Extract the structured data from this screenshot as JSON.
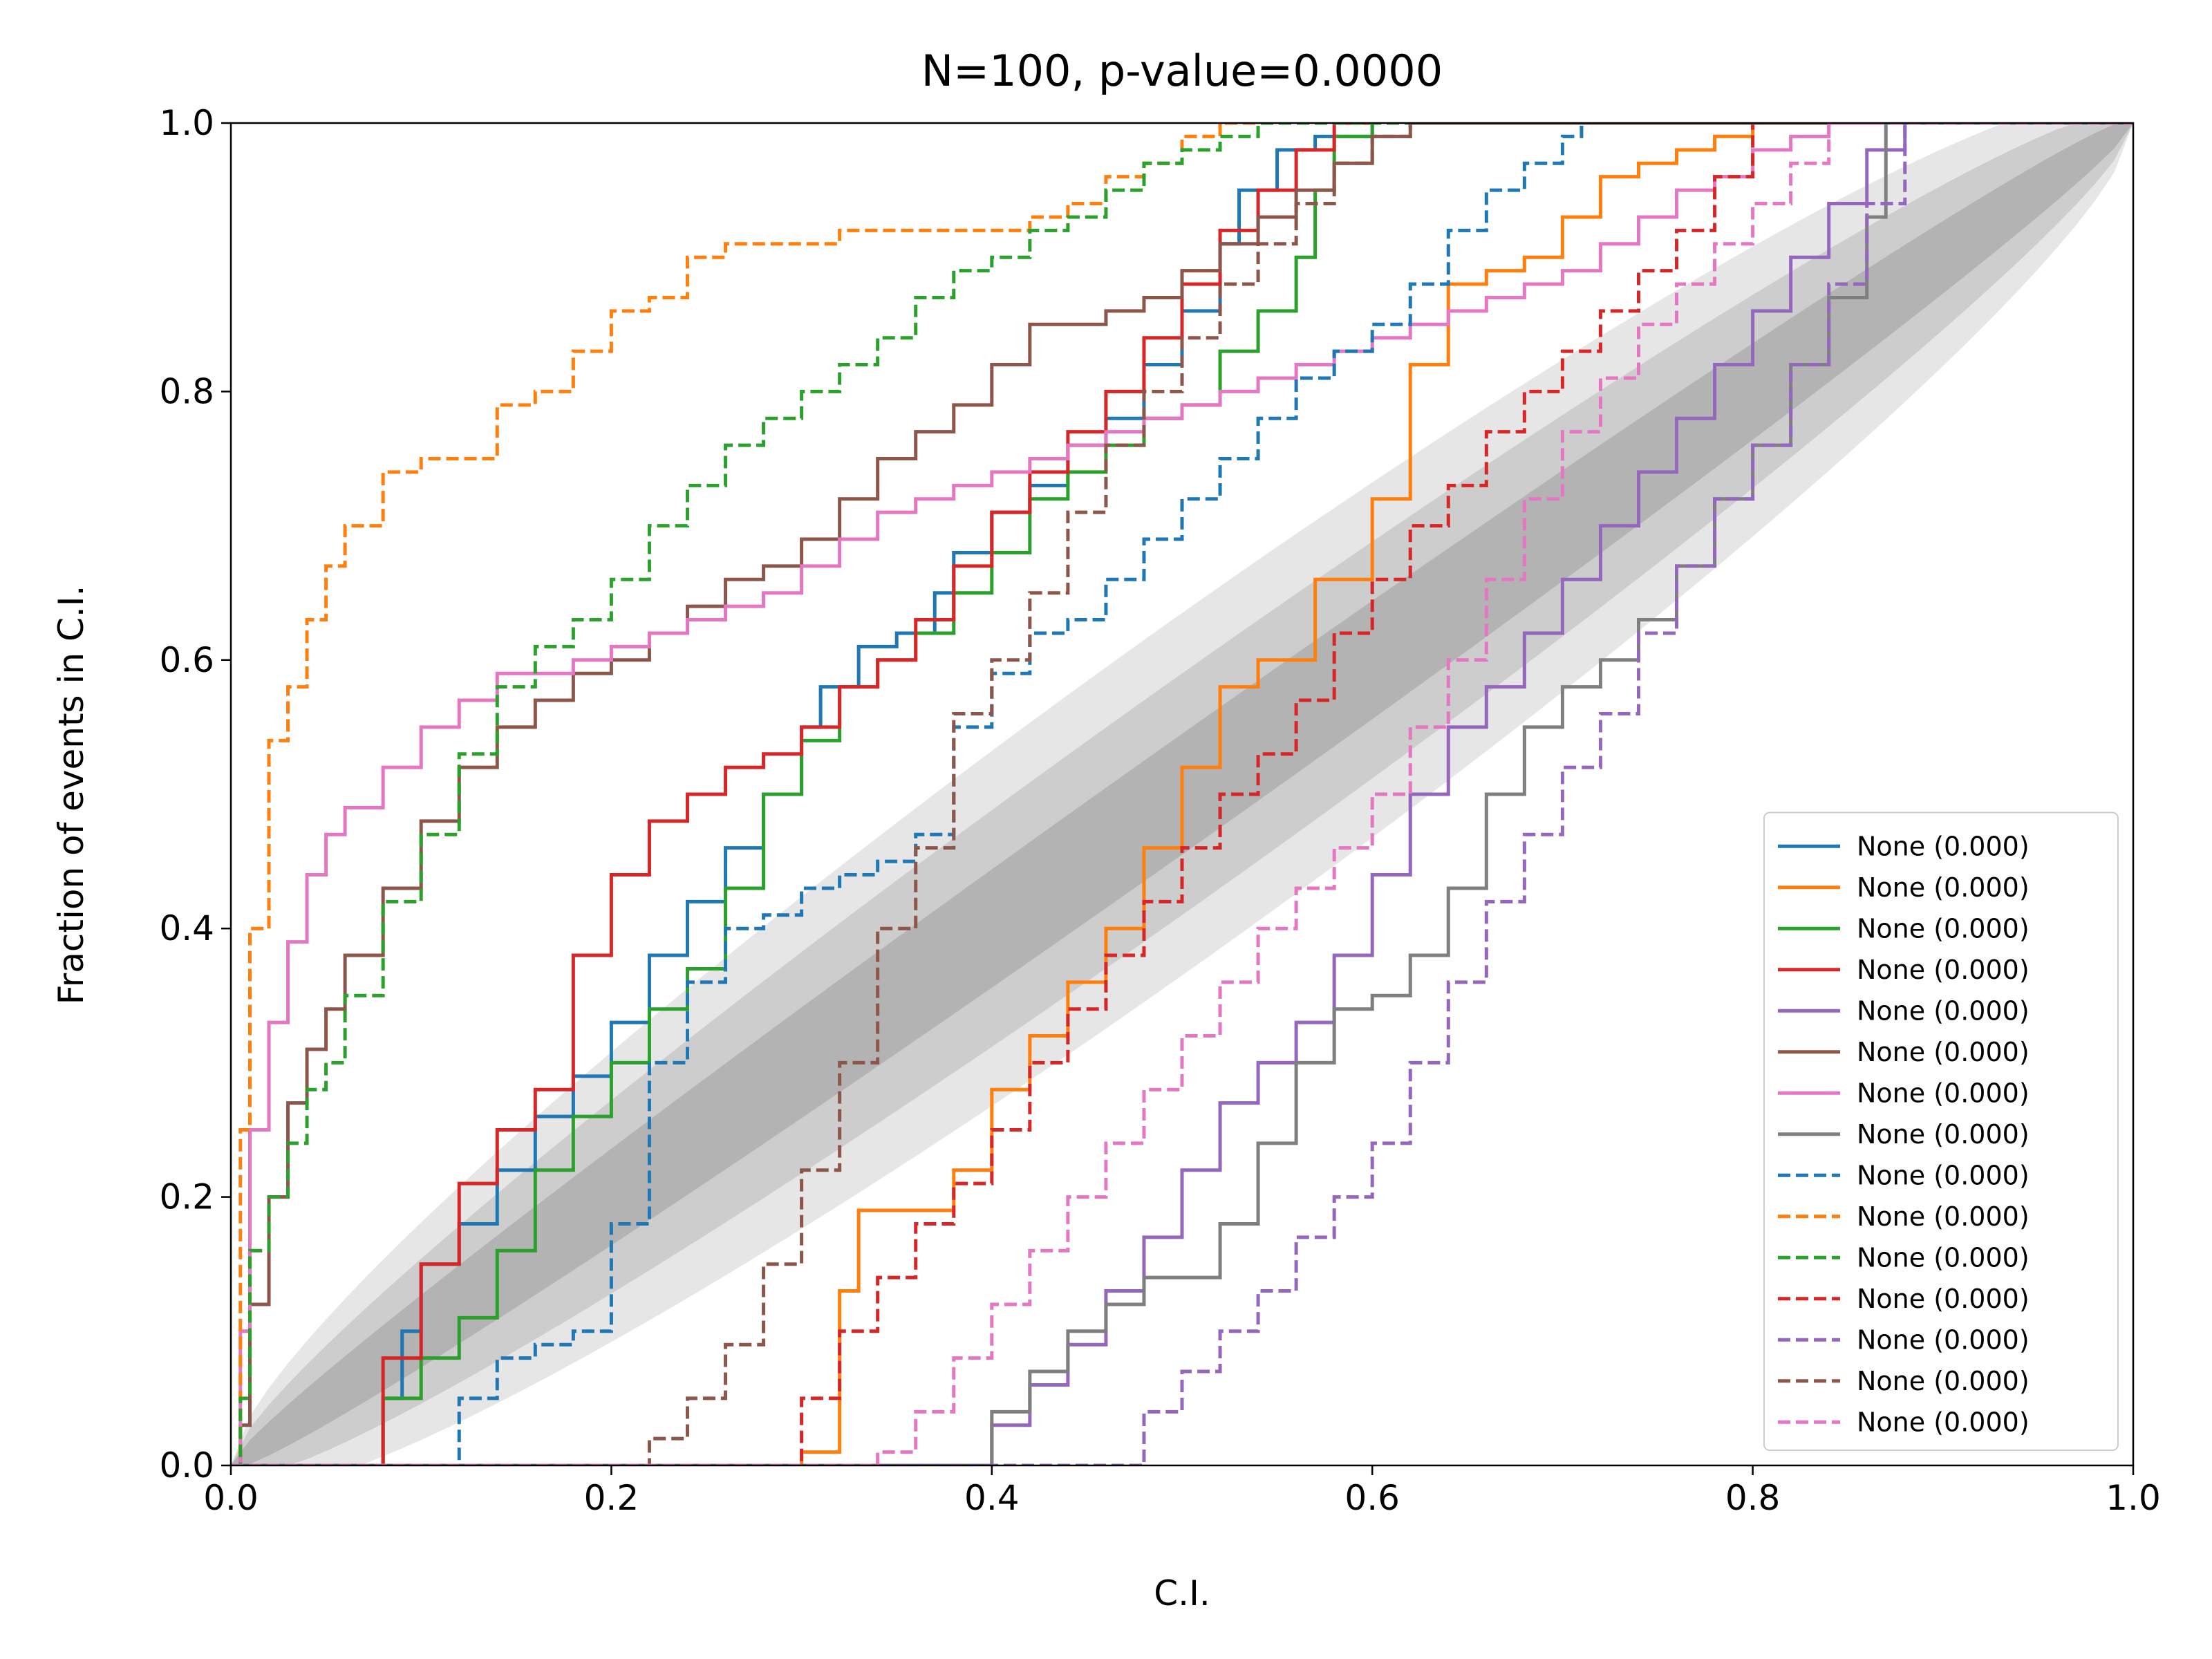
{
  "chart_data": {
    "type": "line",
    "title": "N=100, p-value=0.0000",
    "xlabel": "C.I.",
    "ylabel": "Fraction of events in C.I.",
    "xlim": [
      0,
      1
    ],
    "ylim": [
      0,
      1
    ],
    "xticks": [
      "0.0",
      "0.2",
      "0.4",
      "0.6",
      "0.8",
      "1.0"
    ],
    "yticks": [
      "0.0",
      "0.2",
      "0.4",
      "0.6",
      "0.8",
      "1.0"
    ],
    "grid": false,
    "legend_position": "lower-right",
    "confidence_bands": [
      {
        "level": "1-sigma",
        "half_width": 0.045,
        "color": "#b3b3b3"
      },
      {
        "level": "2-sigma",
        "half_width": 0.09,
        "color": "#cdcdcd"
      },
      {
        "level": "3-sigma",
        "half_width": 0.135,
        "color": "#e6e6e6"
      }
    ],
    "series": [
      {
        "name": "None (0.000)",
        "color": "#1f77b4",
        "style": "solid",
        "x": [
          0,
          0.07,
          0.08,
          0.09,
          0.1,
          0.12,
          0.14,
          0.16,
          0.18,
          0.2,
          0.22,
          0.24,
          0.26,
          0.28,
          0.3,
          0.31,
          0.33,
          0.35,
          0.37,
          0.38,
          0.4,
          0.42,
          0.44,
          0.46,
          0.48,
          0.5,
          0.52,
          0.53,
          0.55,
          0.57,
          0.6
        ],
        "y": [
          0,
          0,
          0.05,
          0.1,
          0.15,
          0.18,
          0.22,
          0.26,
          0.29,
          0.33,
          0.38,
          0.42,
          0.46,
          0.5,
          0.55,
          0.58,
          0.61,
          0.62,
          0.65,
          0.68,
          0.71,
          0.73,
          0.76,
          0.78,
          0.82,
          0.86,
          0.91,
          0.95,
          0.98,
          0.99,
          1
        ]
      },
      {
        "name": "None (0.000)",
        "color": "#ff7f0e",
        "style": "solid",
        "x": [
          0,
          0.27,
          0.3,
          0.32,
          0.33,
          0.36,
          0.38,
          0.4,
          0.42,
          0.44,
          0.46,
          0.48,
          0.5,
          0.52,
          0.54,
          0.57,
          0.6,
          0.62,
          0.64,
          0.66,
          0.68,
          0.7,
          0.72,
          0.74,
          0.76,
          0.78,
          0.8,
          0.82,
          0.84,
          1
        ],
        "y": [
          0,
          0,
          0.01,
          0.13,
          0.19,
          0.19,
          0.22,
          0.28,
          0.32,
          0.36,
          0.4,
          0.46,
          0.52,
          0.58,
          0.6,
          0.66,
          0.72,
          0.82,
          0.88,
          0.89,
          0.9,
          0.93,
          0.96,
          0.97,
          0.98,
          0.99,
          1,
          1,
          1,
          1
        ]
      },
      {
        "name": "None (0.000)",
        "color": "#2ca02c",
        "style": "solid",
        "x": [
          0,
          0.06,
          0.08,
          0.1,
          0.12,
          0.14,
          0.16,
          0.18,
          0.2,
          0.22,
          0.24,
          0.26,
          0.28,
          0.3,
          0.32,
          0.34,
          0.36,
          0.38,
          0.4,
          0.42,
          0.44,
          0.46,
          0.48,
          0.5,
          0.52,
          0.54,
          0.56,
          0.57,
          0.58,
          0.6
        ],
        "y": [
          0,
          0,
          0.05,
          0.08,
          0.11,
          0.16,
          0.22,
          0.26,
          0.3,
          0.34,
          0.37,
          0.43,
          0.5,
          0.54,
          0.58,
          0.6,
          0.62,
          0.65,
          0.68,
          0.72,
          0.74,
          0.76,
          0.78,
          0.79,
          0.83,
          0.86,
          0.9,
          0.95,
          0.99,
          1
        ]
      },
      {
        "name": "None (0.000)",
        "color": "#d62728",
        "style": "solid",
        "x": [
          0,
          0.06,
          0.08,
          0.1,
          0.12,
          0.14,
          0.16,
          0.18,
          0.2,
          0.22,
          0.24,
          0.26,
          0.28,
          0.3,
          0.32,
          0.34,
          0.36,
          0.38,
          0.4,
          0.42,
          0.44,
          0.46,
          0.48,
          0.5,
          0.52,
          0.54,
          0.56,
          0.58,
          0.6
        ],
        "y": [
          0,
          0,
          0.08,
          0.15,
          0.21,
          0.25,
          0.28,
          0.38,
          0.44,
          0.48,
          0.5,
          0.52,
          0.53,
          0.55,
          0.58,
          0.6,
          0.63,
          0.67,
          0.71,
          0.74,
          0.77,
          0.8,
          0.84,
          0.88,
          0.92,
          0.95,
          0.98,
          1,
          1
        ]
      },
      {
        "name": "None (0.000)",
        "color": "#9467bd",
        "style": "solid",
        "x": [
          0,
          0.38,
          0.4,
          0.42,
          0.44,
          0.46,
          0.48,
          0.5,
          0.52,
          0.54,
          0.56,
          0.58,
          0.6,
          0.62,
          0.64,
          0.66,
          0.68,
          0.7,
          0.72,
          0.74,
          0.76,
          0.78,
          0.8,
          0.82,
          0.84,
          0.86,
          0.88,
          1
        ],
        "y": [
          0,
          0,
          0.03,
          0.06,
          0.09,
          0.13,
          0.17,
          0.22,
          0.27,
          0.3,
          0.33,
          0.38,
          0.44,
          0.5,
          0.55,
          0.58,
          0.62,
          0.66,
          0.7,
          0.74,
          0.78,
          0.82,
          0.86,
          0.9,
          0.94,
          0.98,
          1,
          1
        ]
      },
      {
        "name": "None (0.000)",
        "color": "#8c564b",
        "style": "solid",
        "x": [
          0,
          0.005,
          0.01,
          0.02,
          0.03,
          0.04,
          0.05,
          0.06,
          0.08,
          0.1,
          0.12,
          0.14,
          0.16,
          0.18,
          0.2,
          0.22,
          0.24,
          0.26,
          0.28,
          0.3,
          0.32,
          0.34,
          0.36,
          0.38,
          0.4,
          0.42,
          0.44,
          0.46,
          0.48,
          0.5,
          0.52,
          0.54,
          0.56,
          0.58,
          0.6,
          0.62,
          0.64,
          1
        ],
        "y": [
          0,
          0.03,
          0.12,
          0.2,
          0.27,
          0.31,
          0.34,
          0.38,
          0.43,
          0.48,
          0.52,
          0.55,
          0.57,
          0.59,
          0.6,
          0.62,
          0.64,
          0.66,
          0.67,
          0.69,
          0.72,
          0.75,
          0.77,
          0.79,
          0.82,
          0.85,
          0.85,
          0.86,
          0.87,
          0.89,
          0.91,
          0.93,
          0.95,
          0.97,
          0.99,
          1,
          1,
          1
        ]
      },
      {
        "name": "None (0.000)",
        "color": "#e377c2",
        "style": "solid",
        "x": [
          0,
          0.005,
          0.01,
          0.02,
          0.03,
          0.04,
          0.05,
          0.06,
          0.08,
          0.1,
          0.12,
          0.14,
          0.16,
          0.18,
          0.2,
          0.22,
          0.24,
          0.26,
          0.28,
          0.3,
          0.32,
          0.34,
          0.36,
          0.38,
          0.4,
          0.42,
          0.44,
          0.46,
          0.48,
          0.5,
          0.52,
          0.54,
          0.56,
          0.58,
          0.6,
          0.62,
          0.64,
          0.66,
          0.68,
          0.7,
          0.72,
          0.74,
          0.76,
          0.78,
          0.8,
          0.82,
          0.84,
          1
        ],
        "y": [
          0,
          0.1,
          0.25,
          0.33,
          0.39,
          0.44,
          0.47,
          0.49,
          0.52,
          0.55,
          0.57,
          0.59,
          0.59,
          0.6,
          0.61,
          0.62,
          0.63,
          0.64,
          0.65,
          0.67,
          0.69,
          0.71,
          0.72,
          0.73,
          0.74,
          0.75,
          0.76,
          0.77,
          0.78,
          0.79,
          0.8,
          0.81,
          0.82,
          0.83,
          0.84,
          0.85,
          0.86,
          0.87,
          0.88,
          0.89,
          0.91,
          0.93,
          0.95,
          0.96,
          0.98,
          0.99,
          1,
          1
        ]
      },
      {
        "name": "None (0.000)",
        "color": "#7f7f7f",
        "style": "solid",
        "x": [
          0,
          0.38,
          0.4,
          0.42,
          0.44,
          0.46,
          0.48,
          0.5,
          0.52,
          0.54,
          0.56,
          0.58,
          0.6,
          0.62,
          0.64,
          0.66,
          0.68,
          0.7,
          0.72,
          0.74,
          0.76,
          0.78,
          0.8,
          0.82,
          0.84,
          0.86,
          0.87,
          1
        ],
        "y": [
          0,
          0,
          0.04,
          0.07,
          0.1,
          0.12,
          0.14,
          0.14,
          0.18,
          0.24,
          0.3,
          0.34,
          0.35,
          0.38,
          0.43,
          0.5,
          0.55,
          0.58,
          0.6,
          0.63,
          0.67,
          0.72,
          0.76,
          0.82,
          0.87,
          0.93,
          1,
          1
        ]
      },
      {
        "name": "None (0.000)",
        "color": "#1f77b4",
        "style": "dashed",
        "x": [
          0,
          0.1,
          0.12,
          0.14,
          0.16,
          0.18,
          0.2,
          0.22,
          0.24,
          0.26,
          0.28,
          0.3,
          0.32,
          0.34,
          0.36,
          0.38,
          0.4,
          0.42,
          0.44,
          0.46,
          0.48,
          0.5,
          0.52,
          0.54,
          0.56,
          0.58,
          0.6,
          0.62,
          0.64,
          0.66,
          0.68,
          0.7,
          0.71,
          1
        ],
        "y": [
          0,
          0,
          0.05,
          0.08,
          0.09,
          0.1,
          0.18,
          0.3,
          0.36,
          0.4,
          0.41,
          0.43,
          0.44,
          0.45,
          0.47,
          0.55,
          0.59,
          0.62,
          0.63,
          0.66,
          0.69,
          0.72,
          0.75,
          0.78,
          0.81,
          0.83,
          0.85,
          0.88,
          0.92,
          0.95,
          0.97,
          0.99,
          1,
          1
        ]
      },
      {
        "name": "None (0.000)",
        "color": "#ff7f0e",
        "style": "dashed",
        "x": [
          0,
          0.005,
          0.01,
          0.02,
          0.03,
          0.04,
          0.05,
          0.06,
          0.08,
          0.1,
          0.12,
          0.14,
          0.16,
          0.18,
          0.2,
          0.22,
          0.24,
          0.26,
          0.28,
          0.3,
          0.32,
          0.34,
          0.36,
          0.38,
          0.4,
          0.42,
          0.44,
          0.46,
          0.48,
          0.5,
          0.52,
          0.55,
          0.58,
          1
        ],
        "y": [
          0,
          0.25,
          0.4,
          0.54,
          0.58,
          0.63,
          0.67,
          0.7,
          0.74,
          0.75,
          0.75,
          0.79,
          0.8,
          0.83,
          0.86,
          0.87,
          0.9,
          0.91,
          0.91,
          0.91,
          0.92,
          0.92,
          0.92,
          0.92,
          0.92,
          0.93,
          0.94,
          0.96,
          0.97,
          0.99,
          1,
          1,
          1,
          1
        ]
      },
      {
        "name": "None (0.000)",
        "color": "#2ca02c",
        "style": "dashed",
        "x": [
          0,
          0.005,
          0.01,
          0.02,
          0.03,
          0.04,
          0.05,
          0.06,
          0.08,
          0.1,
          0.12,
          0.14,
          0.16,
          0.18,
          0.2,
          0.22,
          0.24,
          0.26,
          0.28,
          0.3,
          0.32,
          0.34,
          0.36,
          0.38,
          0.4,
          0.42,
          0.44,
          0.46,
          0.48,
          0.5,
          0.52,
          0.54,
          0.56,
          1
        ],
        "y": [
          0,
          0.05,
          0.16,
          0.2,
          0.24,
          0.28,
          0.3,
          0.35,
          0.42,
          0.47,
          0.53,
          0.58,
          0.61,
          0.63,
          0.66,
          0.7,
          0.73,
          0.76,
          0.78,
          0.8,
          0.82,
          0.84,
          0.87,
          0.89,
          0.9,
          0.92,
          0.93,
          0.95,
          0.97,
          0.98,
          0.99,
          1,
          1,
          1
        ]
      },
      {
        "name": "None (0.000)",
        "color": "#d62728",
        "style": "dashed",
        "x": [
          0,
          0.28,
          0.3,
          0.32,
          0.34,
          0.36,
          0.38,
          0.4,
          0.42,
          0.44,
          0.46,
          0.48,
          0.5,
          0.52,
          0.54,
          0.56,
          0.58,
          0.6,
          0.62,
          0.64,
          0.66,
          0.68,
          0.7,
          0.72,
          0.74,
          0.76,
          0.78,
          0.8,
          1
        ],
        "y": [
          0,
          0,
          0.05,
          0.1,
          0.14,
          0.18,
          0.21,
          0.25,
          0.3,
          0.34,
          0.38,
          0.42,
          0.46,
          0.5,
          0.53,
          0.57,
          0.62,
          0.66,
          0.7,
          0.73,
          0.77,
          0.8,
          0.83,
          0.86,
          0.89,
          0.92,
          0.96,
          1,
          1
        ]
      },
      {
        "name": "None (0.000)",
        "color": "#9467bd",
        "style": "dashed",
        "x": [
          0,
          0.45,
          0.48,
          0.5,
          0.52,
          0.54,
          0.56,
          0.58,
          0.6,
          0.62,
          0.64,
          0.66,
          0.68,
          0.7,
          0.72,
          0.74,
          0.76,
          0.78,
          0.8,
          0.82,
          0.84,
          0.86,
          0.88,
          1
        ],
        "y": [
          0,
          0,
          0.04,
          0.07,
          0.1,
          0.13,
          0.17,
          0.2,
          0.24,
          0.3,
          0.36,
          0.42,
          0.47,
          0.52,
          0.56,
          0.62,
          0.67,
          0.72,
          0.76,
          0.82,
          0.88,
          0.94,
          1,
          1
        ]
      },
      {
        "name": "None (0.000)",
        "color": "#8c564b",
        "style": "dashed",
        "x": [
          0,
          0.2,
          0.22,
          0.24,
          0.26,
          0.28,
          0.3,
          0.32,
          0.34,
          0.36,
          0.38,
          0.4,
          0.42,
          0.44,
          0.46,
          0.48,
          0.5,
          0.52,
          0.54,
          0.56,
          0.58,
          0.6,
          0.62,
          0.64,
          1
        ],
        "y": [
          0,
          0,
          0.02,
          0.05,
          0.09,
          0.15,
          0.22,
          0.3,
          0.4,
          0.46,
          0.56,
          0.6,
          0.65,
          0.71,
          0.76,
          0.8,
          0.84,
          0.88,
          0.91,
          0.94,
          0.97,
          0.99,
          1,
          1,
          1
        ]
      },
      {
        "name": "None (0.000)",
        "color": "#e377c2",
        "style": "dashed",
        "x": [
          0,
          0.32,
          0.34,
          0.36,
          0.38,
          0.4,
          0.42,
          0.44,
          0.46,
          0.48,
          0.5,
          0.52,
          0.54,
          0.56,
          0.58,
          0.6,
          0.62,
          0.64,
          0.66,
          0.68,
          0.7,
          0.72,
          0.74,
          0.76,
          0.78,
          0.8,
          0.82,
          0.84,
          1
        ],
        "y": [
          0,
          0,
          0.01,
          0.04,
          0.08,
          0.12,
          0.16,
          0.2,
          0.24,
          0.28,
          0.32,
          0.36,
          0.4,
          0.43,
          0.46,
          0.5,
          0.55,
          0.6,
          0.66,
          0.72,
          0.77,
          0.81,
          0.85,
          0.88,
          0.91,
          0.94,
          0.97,
          1,
          1
        ]
      }
    ]
  }
}
